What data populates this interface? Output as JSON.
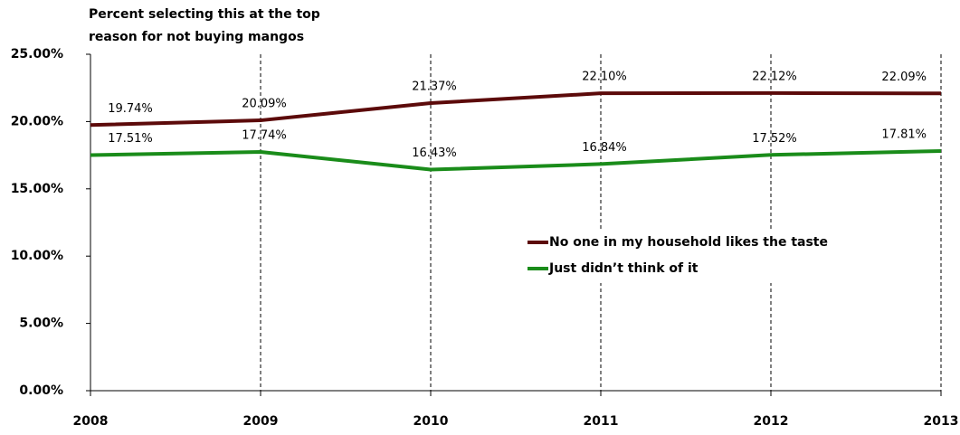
{
  "chart_data": {
    "type": "line",
    "title": [
      "Percent selecting this at the top",
      "reason for not buying mangos"
    ],
    "x": [
      2008,
      2009,
      2010,
      2011,
      2012,
      2013
    ],
    "xlim": [
      2008,
      2013
    ],
    "xticks": [
      2008,
      2009,
      2010,
      2011,
      2012,
      2013
    ],
    "ylim": [
      0,
      25
    ],
    "yticks": [
      {
        "value": 0,
        "label": "0.00%"
      },
      {
        "value": 5,
        "label": "5.00%"
      },
      {
        "value": 10,
        "label": "10.00%"
      },
      {
        "value": 15,
        "label": "15.00%"
      },
      {
        "value": 20,
        "label": "20.00%"
      },
      {
        "value": 25,
        "label": "25.00%"
      }
    ],
    "grid": "x-dashed",
    "legend": "center-right",
    "series": [
      {
        "name": "No one in my household likes the taste",
        "color": "#5c0a0a",
        "values": [
          19.74,
          20.09,
          21.37,
          22.1,
          22.12,
          22.09
        ],
        "value_labels": [
          "19.74%",
          "20.09%",
          "21.37%",
          "22.10%",
          "22.12%",
          "22.09%"
        ]
      },
      {
        "name": "Just didn’t think of it",
        "color": "#1a8c1a",
        "values": [
          17.51,
          17.74,
          16.43,
          16.84,
          17.52,
          17.81
        ],
        "value_labels": [
          "17.51%",
          "17.74%",
          "16.43%",
          "16.84%",
          "17.52%",
          "17.81%"
        ]
      }
    ]
  }
}
